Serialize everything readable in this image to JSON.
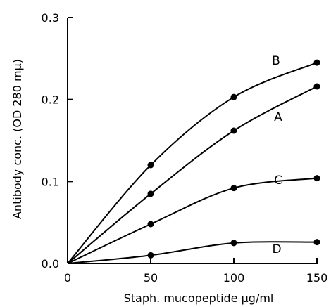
{
  "chart_data": {
    "type": "line",
    "xlabel": "Staph. mucopeptide μg/ml",
    "ylabel": "Antibody conc. (OD 280 mμ)",
    "xlim": [
      0,
      150
    ],
    "ylim": [
      0,
      0.3
    ],
    "x_ticks": [
      "0",
      "50",
      "100",
      "150"
    ],
    "y_ticks": [
      "0.0",
      "0.1",
      "0.2",
      "0.3"
    ],
    "grid": false,
    "series": [
      {
        "name": "B",
        "x": [
          0,
          50,
          100,
          150
        ],
        "y": [
          0,
          0.12,
          0.203,
          0.245
        ]
      },
      {
        "name": "A",
        "x": [
          0,
          50,
          100,
          150
        ],
        "y": [
          0,
          0.085,
          0.162,
          0.216
        ]
      },
      {
        "name": "C",
        "x": [
          0,
          50,
          100,
          150
        ],
        "y": [
          0,
          0.048,
          0.092,
          0.104
        ]
      },
      {
        "name": "D",
        "x": [
          0,
          50,
          100,
          150
        ],
        "y": [
          0,
          0.01,
          0.025,
          0.026
        ]
      }
    ]
  }
}
